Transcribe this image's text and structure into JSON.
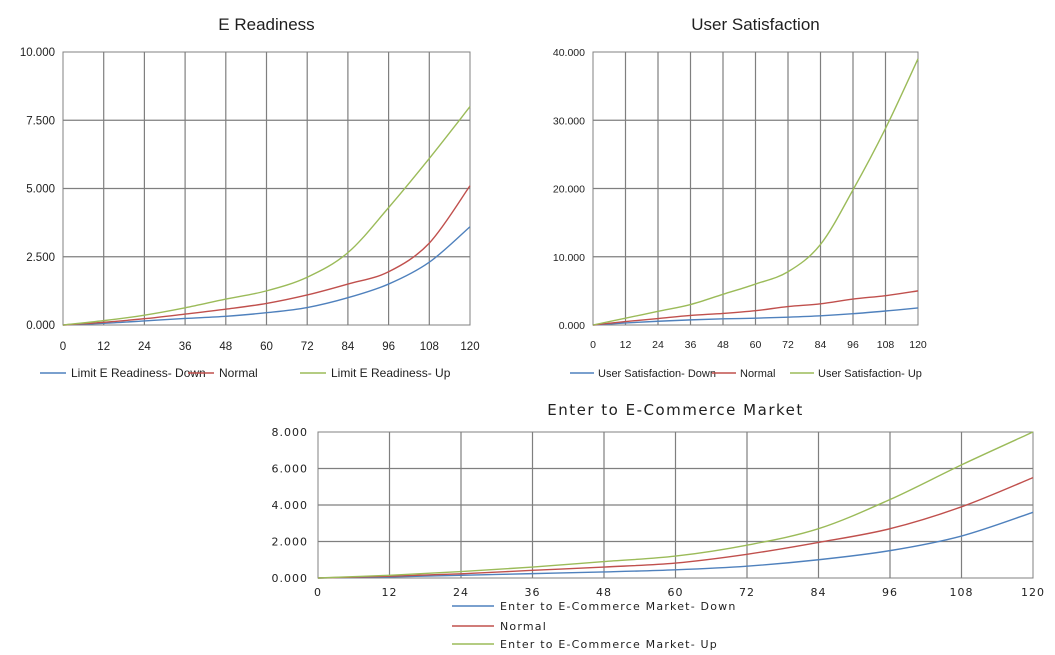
{
  "chart_data": [
    {
      "type": "line",
      "title": "E Readiness",
      "x": [
        0,
        12,
        24,
        36,
        48,
        60,
        72,
        84,
        96,
        108,
        120
      ],
      "x_tick_labels": [
        "0",
        "12",
        "24",
        "36",
        "48",
        "60",
        "72",
        "84",
        "96",
        "108",
        "120"
      ],
      "y_tick_labels": [
        "0.000",
        "2.500",
        "5.000",
        "7.500",
        "10.000"
      ],
      "ylim": [
        0,
        10000
      ],
      "grid": true,
      "legend_position": "bottom",
      "series": [
        {
          "name": "Limit E Readiness- Down",
          "color": "#4f81bd",
          "values": [
            0,
            60,
            150,
            240,
            320,
            450,
            640,
            1000,
            1500,
            2300,
            3600
          ]
        },
        {
          "name": "Normal",
          "color": "#c0504d",
          "values": [
            0,
            100,
            230,
            400,
            580,
            790,
            1100,
            1500,
            1950,
            3000,
            5100
          ]
        },
        {
          "name": "Limit E Readiness- Up",
          "color": "#9bbb59",
          "values": [
            0,
            160,
            360,
            630,
            950,
            1250,
            1750,
            2650,
            4300,
            6100,
            8000
          ]
        }
      ]
    },
    {
      "type": "line",
      "title": "User Satisfaction",
      "x": [
        0,
        12,
        24,
        36,
        48,
        60,
        72,
        84,
        96,
        108,
        120
      ],
      "x_tick_labels": [
        "0",
        "12",
        "24",
        "36",
        "48",
        "60",
        "72",
        "84",
        "96",
        "108",
        "120"
      ],
      "y_tick_labels": [
        "0.000",
        "10.000",
        "20.000",
        "30.000",
        "40.000"
      ],
      "ylim": [
        0,
        40000
      ],
      "grid": true,
      "legend_position": "bottom",
      "series": [
        {
          "name": "User Satisfaction- Down",
          "color": "#4f81bd",
          "values": [
            0,
            300,
            550,
            750,
            900,
            1000,
            1150,
            1350,
            1650,
            2050,
            2500
          ]
        },
        {
          "name": "Normal",
          "color": "#c0504d",
          "values": [
            0,
            500,
            950,
            1400,
            1700,
            2100,
            2700,
            3100,
            3800,
            4300,
            5000
          ]
        },
        {
          "name": "User Satisfaction- Up",
          "color": "#9bbb59",
          "values": [
            0,
            1000,
            2000,
            3000,
            4500,
            6000,
            7800,
            11800,
            19800,
            28800,
            39000
          ]
        }
      ]
    },
    {
      "type": "line",
      "title": "Enter to E-Commerce Market",
      "x": [
        0,
        12,
        24,
        36,
        48,
        60,
        72,
        84,
        96,
        108,
        120
      ],
      "x_tick_labels": [
        "0",
        "12",
        "24",
        "36",
        "48",
        "60",
        "72",
        "84",
        "96",
        "108",
        "120"
      ],
      "y_tick_labels": [
        "0.000",
        "2.000",
        "4.000",
        "6.000",
        "8.000"
      ],
      "ylim": [
        0,
        8000
      ],
      "grid": true,
      "legend_position": "bottom",
      "series": [
        {
          "name": "Enter to E-Commerce Market- Down",
          "color": "#4f81bd",
          "values": [
            0,
            60,
            150,
            240,
            330,
            450,
            650,
            1000,
            1500,
            2300,
            3600
          ]
        },
        {
          "name": "Normal",
          "color": "#c0504d",
          "values": [
            0,
            100,
            230,
            420,
            600,
            820,
            1300,
            1950,
            2700,
            3900,
            5500
          ]
        },
        {
          "name": "Enter to E-Commerce Market- Up",
          "color": "#9bbb59",
          "values": [
            0,
            150,
            350,
            600,
            900,
            1200,
            1800,
            2700,
            4300,
            6200,
            8000
          ]
        }
      ]
    }
  ]
}
